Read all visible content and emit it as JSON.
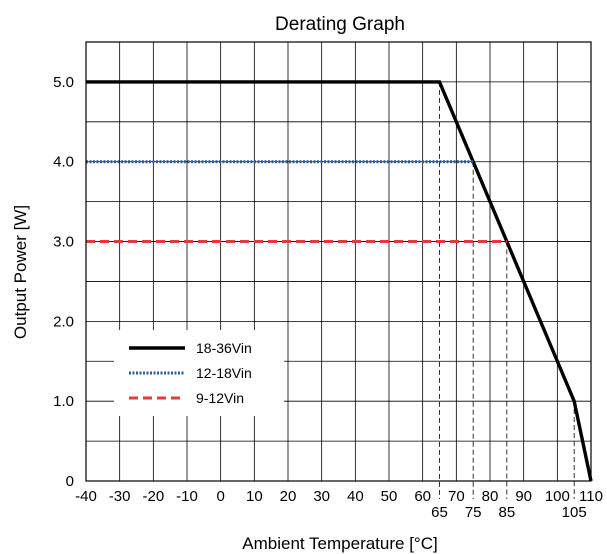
{
  "chart_data": {
    "type": "line",
    "title": "Derating Graph",
    "xlabel": "Ambient Temperature [°C]",
    "ylabel": "Output Power [W]",
    "xlim": [
      -40,
      110
    ],
    "ylim": [
      0,
      5.5
    ],
    "grid": true,
    "x_ticks_major": [
      -40,
      -30,
      -20,
      -10,
      0,
      10,
      20,
      30,
      40,
      50,
      60,
      70,
      80,
      90,
      100,
      110
    ],
    "x_tick_labels_major": [
      "-40",
      "-30",
      "-20",
      "-10",
      "0",
      "10",
      "20",
      "30",
      "40",
      "50",
      "60",
      "70",
      "80",
      "90",
      "100",
      "110"
    ],
    "x_ticks_marked": [
      65,
      75,
      85,
      105
    ],
    "x_tick_labels_marked": [
      "65",
      "75",
      "85",
      "105"
    ],
    "y_ticks": [
      0,
      1,
      2,
      3,
      4,
      5
    ],
    "y_tick_labels": [
      "0",
      "1.0",
      "2.0",
      "3.0",
      "4.0",
      "5.0"
    ],
    "legend_position": "lower-left",
    "series": [
      {
        "name": "18-36Vin",
        "style": "solid",
        "color": "#000000",
        "x": [
          -40,
          65,
          100,
          105,
          110
        ],
        "y": [
          5.0,
          5.0,
          1.5,
          1.0,
          0
        ]
      },
      {
        "name": "12-18Vin",
        "style": "dotted",
        "color": "#2a5aa0",
        "x": [
          -40,
          75
        ],
        "y": [
          4.0,
          4.0
        ]
      },
      {
        "name": "9-12Vin",
        "style": "dashed",
        "color": "#e63a3a",
        "x": [
          -40,
          85
        ],
        "y": [
          3.0,
          3.0
        ]
      }
    ]
  }
}
